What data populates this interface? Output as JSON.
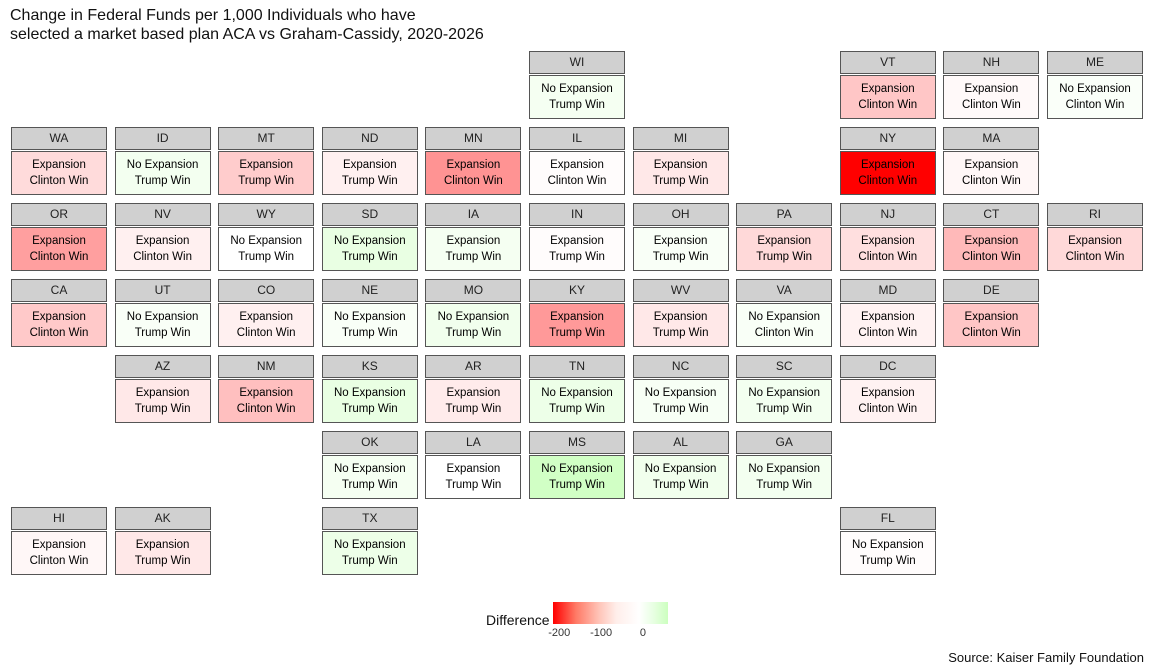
{
  "title_line1": "Change in Federal Funds per 1,000 Individuals who have",
  "title_line2": "selected a market based plan ACA vs Graham-Cassidy, 2020-2026",
  "legend_title": "Difference",
  "legend_ticks": [
    "-200",
    "-100",
    "0"
  ],
  "legend_tick_values": [
    -200,
    -100,
    0
  ],
  "legend_range": [
    -215,
    60
  ],
  "source": "Source: Kaiser Family Foundation",
  "colors": {
    "low": "#ff0000",
    "mid": "#ffffff",
    "high": "#ccffbf",
    "strip": "#d0d0d0"
  },
  "chart_data": {
    "type": "heatmap",
    "title": "Change in Federal Funds per 1,000 Individuals who have selected a market based plan ACA vs Graham-Cassidy, 2020-2026",
    "legend_title": "Difference",
    "scale": {
      "low": -200,
      "mid": 0,
      "high": 50
    },
    "states": [
      {
        "abbr": "WI",
        "row": 0,
        "col": 5,
        "line1": "No Expansion",
        "line2": "Trump Win",
        "difference": 10
      },
      {
        "abbr": "VT",
        "row": 0,
        "col": 8,
        "line1": "Expansion",
        "line2": "Clinton Win",
        "difference": -45
      },
      {
        "abbr": "NH",
        "row": 0,
        "col": 9,
        "line1": "Expansion",
        "line2": "Clinton Win",
        "difference": -5
      },
      {
        "abbr": "ME",
        "row": 0,
        "col": 10,
        "line1": "No Expansion",
        "line2": "Clinton Win",
        "difference": 5
      },
      {
        "abbr": "WA",
        "row": 1,
        "col": 0,
        "line1": "Expansion",
        "line2": "Clinton Win",
        "difference": -28
      },
      {
        "abbr": "ID",
        "row": 1,
        "col": 1,
        "line1": "No Expansion",
        "line2": "Trump Win",
        "difference": 12
      },
      {
        "abbr": "MT",
        "row": 1,
        "col": 2,
        "line1": "Expansion",
        "line2": "Trump Win",
        "difference": -40
      },
      {
        "abbr": "ND",
        "row": 1,
        "col": 3,
        "line1": "Expansion",
        "line2": "Trump Win",
        "difference": -12
      },
      {
        "abbr": "MN",
        "row": 1,
        "col": 4,
        "line1": "Expansion",
        "line2": "Clinton Win",
        "difference": -85
      },
      {
        "abbr": "IL",
        "row": 1,
        "col": 5,
        "line1": "Expansion",
        "line2": "Clinton Win",
        "difference": -2
      },
      {
        "abbr": "MI",
        "row": 1,
        "col": 6,
        "line1": "Expansion",
        "line2": "Trump Win",
        "difference": -18
      },
      {
        "abbr": "NY",
        "row": 1,
        "col": 8,
        "line1": "Expansion",
        "line2": "Clinton Win",
        "difference": -210
      },
      {
        "abbr": "MA",
        "row": 1,
        "col": 9,
        "line1": "Expansion",
        "line2": "Clinton Win",
        "difference": -6
      },
      {
        "abbr": "OR",
        "row": 2,
        "col": 0,
        "line1": "Expansion",
        "line2": "Clinton Win",
        "difference": -75
      },
      {
        "abbr": "NV",
        "row": 2,
        "col": 1,
        "line1": "Expansion",
        "line2": "Clinton Win",
        "difference": -12
      },
      {
        "abbr": "WY",
        "row": 2,
        "col": 2,
        "line1": "No Expansion",
        "line2": "Trump Win",
        "difference": 0
      },
      {
        "abbr": "SD",
        "row": 2,
        "col": 3,
        "line1": "No Expansion",
        "line2": "Trump Win",
        "difference": 22
      },
      {
        "abbr": "IA",
        "row": 2,
        "col": 4,
        "line1": "Expansion",
        "line2": "Trump Win",
        "difference": 10
      },
      {
        "abbr": "IN",
        "row": 2,
        "col": 5,
        "line1": "Expansion",
        "line2": "Trump Win",
        "difference": -2
      },
      {
        "abbr": "OH",
        "row": 2,
        "col": 6,
        "line1": "Expansion",
        "line2": "Trump Win",
        "difference": 6
      },
      {
        "abbr": "PA",
        "row": 2,
        "col": 7,
        "line1": "Expansion",
        "line2": "Trump Win",
        "difference": -30
      },
      {
        "abbr": "NJ",
        "row": 2,
        "col": 8,
        "line1": "Expansion",
        "line2": "Clinton Win",
        "difference": -25
      },
      {
        "abbr": "CT",
        "row": 2,
        "col": 9,
        "line1": "Expansion",
        "line2": "Clinton Win",
        "difference": -55
      },
      {
        "abbr": "RI",
        "row": 2,
        "col": 10,
        "line1": "Expansion",
        "line2": "Clinton Win",
        "difference": -30
      },
      {
        "abbr": "CA",
        "row": 3,
        "col": 0,
        "line1": "Expansion",
        "line2": "Clinton Win",
        "difference": -42
      },
      {
        "abbr": "UT",
        "row": 3,
        "col": 1,
        "line1": "No Expansion",
        "line2": "Trump Win",
        "difference": 6
      },
      {
        "abbr": "CO",
        "row": 3,
        "col": 2,
        "line1": "Expansion",
        "line2": "Clinton Win",
        "difference": -12
      },
      {
        "abbr": "NE",
        "row": 3,
        "col": 3,
        "line1": "No Expansion",
        "line2": "Trump Win",
        "difference": 6
      },
      {
        "abbr": "MO",
        "row": 3,
        "col": 4,
        "line1": "No Expansion",
        "line2": "Trump Win",
        "difference": 14
      },
      {
        "abbr": "KY",
        "row": 3,
        "col": 5,
        "line1": "Expansion",
        "line2": "Trump Win",
        "difference": -80
      },
      {
        "abbr": "WV",
        "row": 3,
        "col": 6,
        "line1": "Expansion",
        "line2": "Trump Win",
        "difference": -18
      },
      {
        "abbr": "VA",
        "row": 3,
        "col": 7,
        "line1": "No Expansion",
        "line2": "Clinton Win",
        "difference": 6
      },
      {
        "abbr": "MD",
        "row": 3,
        "col": 8,
        "line1": "Expansion",
        "line2": "Clinton Win",
        "difference": -10
      },
      {
        "abbr": "DE",
        "row": 3,
        "col": 9,
        "line1": "Expansion",
        "line2": "Clinton Win",
        "difference": -45
      },
      {
        "abbr": "AZ",
        "row": 4,
        "col": 1,
        "line1": "Expansion",
        "line2": "Trump Win",
        "difference": -18
      },
      {
        "abbr": "NM",
        "row": 4,
        "col": 2,
        "line1": "Expansion",
        "line2": "Clinton Win",
        "difference": -50
      },
      {
        "abbr": "KS",
        "row": 4,
        "col": 3,
        "line1": "No Expansion",
        "line2": "Trump Win",
        "difference": 22
      },
      {
        "abbr": "AR",
        "row": 4,
        "col": 4,
        "line1": "Expansion",
        "line2": "Trump Win",
        "difference": -16
      },
      {
        "abbr": "TN",
        "row": 4,
        "col": 5,
        "line1": "No Expansion",
        "line2": "Trump Win",
        "difference": 18
      },
      {
        "abbr": "NC",
        "row": 4,
        "col": 6,
        "line1": "No Expansion",
        "line2": "Trump Win",
        "difference": 8
      },
      {
        "abbr": "SC",
        "row": 4,
        "col": 7,
        "line1": "No Expansion",
        "line2": "Trump Win",
        "difference": 12
      },
      {
        "abbr": "DC",
        "row": 4,
        "col": 8,
        "line1": "Expansion",
        "line2": "Clinton Win",
        "difference": -10
      },
      {
        "abbr": "OK",
        "row": 5,
        "col": 3,
        "line1": "No Expansion",
        "line2": "Trump Win",
        "difference": 10
      },
      {
        "abbr": "LA",
        "row": 5,
        "col": 4,
        "line1": "Expansion",
        "line2": "Trump Win",
        "difference": 0
      },
      {
        "abbr": "MS",
        "row": 5,
        "col": 5,
        "line1": "No Expansion",
        "line2": "Trump Win",
        "difference": 45
      },
      {
        "abbr": "AL",
        "row": 5,
        "col": 6,
        "line1": "No Expansion",
        "line2": "Trump Win",
        "difference": 14
      },
      {
        "abbr": "GA",
        "row": 5,
        "col": 7,
        "line1": "No Expansion",
        "line2": "Trump Win",
        "difference": 12
      },
      {
        "abbr": "HI",
        "row": 6,
        "col": 0,
        "line1": "Expansion",
        "line2": "Clinton Win",
        "difference": -6
      },
      {
        "abbr": "AK",
        "row": 6,
        "col": 1,
        "line1": "Expansion",
        "line2": "Trump Win",
        "difference": -18
      },
      {
        "abbr": "TX",
        "row": 6,
        "col": 3,
        "line1": "No Expansion",
        "line2": "Trump Win",
        "difference": 18
      },
      {
        "abbr": "FL",
        "row": 6,
        "col": 8,
        "line1": "No Expansion",
        "line2": "Trump Win",
        "difference": -2
      }
    ]
  }
}
